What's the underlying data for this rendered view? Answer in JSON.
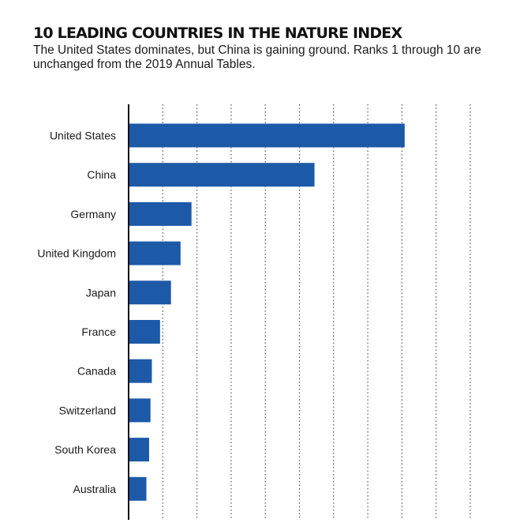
{
  "header": {
    "title": "10 LEADING COUNTRIES IN THE NATURE INDEX",
    "subtitle": "The United States dominates, but China is gaining ground. Ranks 1 through 10 are unchanged from the 2019 Annual Tables."
  },
  "colors": {
    "bar": "#1c5aa8",
    "axis": "#111111",
    "grid": "#555555"
  },
  "chart_data": {
    "type": "bar",
    "orientation": "horizontal",
    "categories": [
      "United States",
      "China",
      "Germany",
      "United Kingdom",
      "Japan",
      "France",
      "Canada",
      "Switzerland",
      "South Korea",
      "Australia"
    ],
    "values": [
      20.2,
      13.6,
      4.6,
      3.8,
      3.1,
      2.3,
      1.7,
      1.6,
      1.5,
      1.3
    ],
    "xlim": [
      0,
      25
    ],
    "grid": true,
    "grid_style": "dotted vertical",
    "tick_labels_shown": false
  }
}
